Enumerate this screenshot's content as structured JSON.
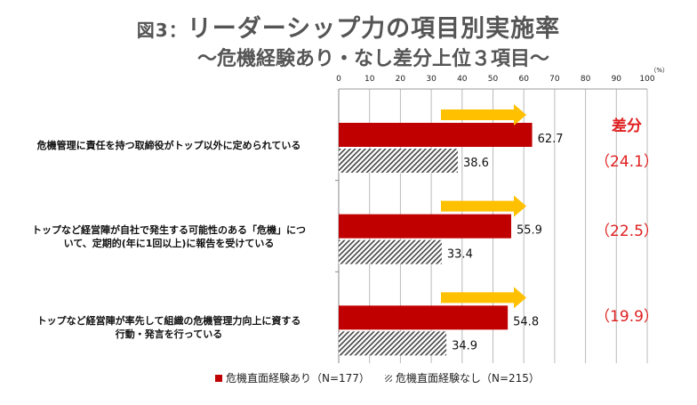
{
  "title": {
    "prefix": "図3：",
    "main": "リーダーシップ力の項目別実施率"
  },
  "subtitle": "〜危機経験あり・なし差分上位３項目〜",
  "colors": {
    "series1": "#c00000",
    "series2": "hatched-gray",
    "arrow": "#ffc000",
    "diff": "#e02020"
  },
  "chart_data": {
    "type": "bar",
    "orientation": "horizontal",
    "unit_label": "（%）",
    "xlim": [
      0,
      100
    ],
    "xticks": [
      0,
      10,
      20,
      30,
      40,
      50,
      60,
      70,
      80,
      90,
      100
    ],
    "grid": true,
    "legend_position": "bottom",
    "categories": [
      "危機管理に責任を持つ取締役がトップ以外に定められている",
      "トップなど経営陣が自社で発生する可能性のある「危機」について、定期的（年に1回以上）に報告を受けている",
      "トップなど経営陣が率先して組織の危機管理力向上に資する行動・発言を行っている"
    ],
    "category_lines": [
      [
        "危機管理に責任を持つ取締役がトップ以外に定められている"
      ],
      [
        "トップなど経営陣が自社で発生する可能性のある「危機」につ",
        "いて、定期的(年に1回以上)に報告を受けている"
      ],
      [
        "トップなど経営陣が率先して組織の危機管理力向上に資する",
        "行動・発言を行っている"
      ]
    ],
    "series": [
      {
        "name": "危機直面経験あり（N=177）",
        "values": [
          62.7,
          55.9,
          54.8
        ]
      },
      {
        "name": "危機直面経験なし（N=215）",
        "values": [
          38.6,
          33.4,
          34.9
        ]
      }
    ],
    "diff_header": "差分",
    "diffs": [
      "（24.1）",
      "（22.5）",
      "（19.9）"
    ]
  }
}
